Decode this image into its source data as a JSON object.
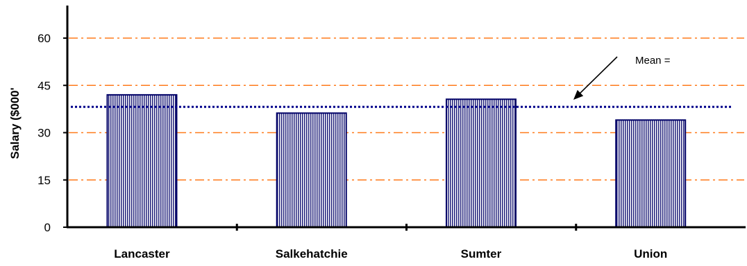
{
  "chart_data": {
    "type": "bar",
    "title": "",
    "xlabel": "",
    "ylabel": "Salary ($000'",
    "categories": [
      "Lancaster",
      "Salkehatchie",
      "Sumter",
      "Union"
    ],
    "values": [
      42,
      36.2,
      40.6,
      34
    ],
    "ylim": [
      0,
      65
    ],
    "yticks": [
      "0",
      "15",
      "30",
      "45",
      "60"
    ],
    "grid": true,
    "reference_line": {
      "value": 38.2,
      "annotation": "Mean ="
    },
    "colors": {
      "bar_fill": "#1f1f7a",
      "bar_hatch": "#ffffff",
      "bar_border": "#000066",
      "grid": "#ff7a1a",
      "mean_line": "#00008b",
      "axis": "#000000"
    }
  }
}
